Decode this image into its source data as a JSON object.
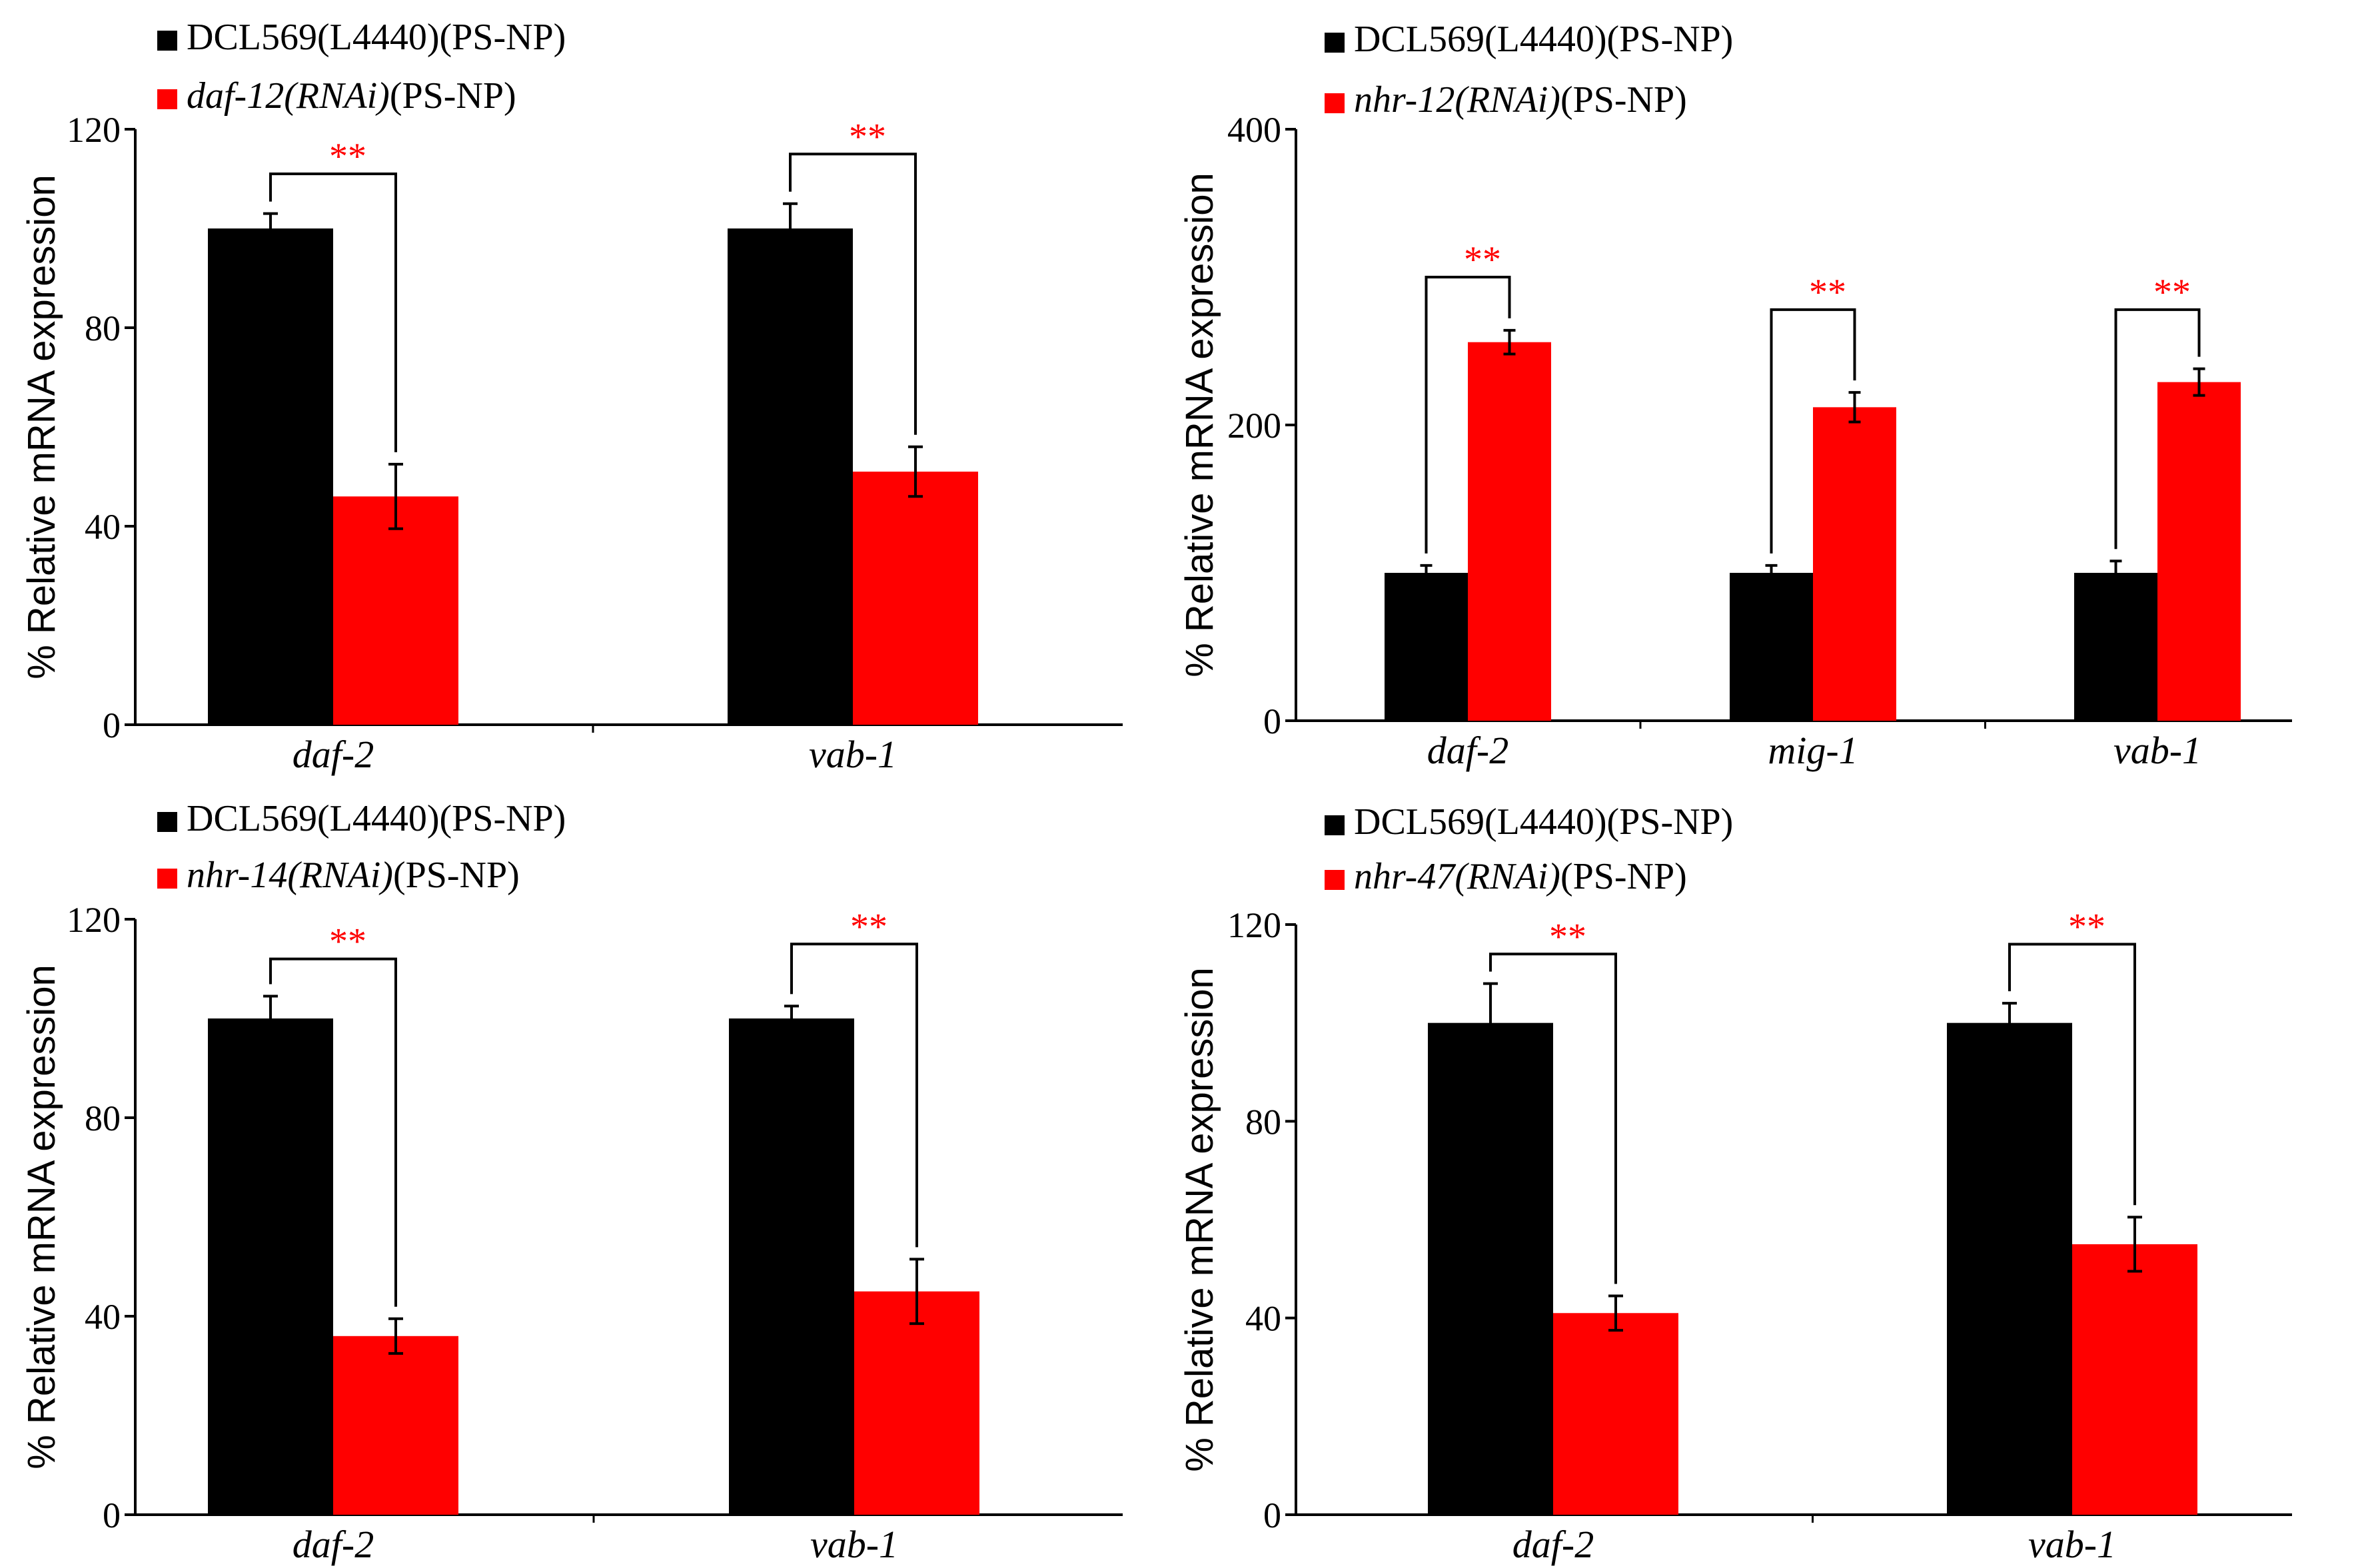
{
  "colors": {
    "control": "#000000",
    "rnai": "#ff0000",
    "significance": "#ff0000",
    "axis": "#000000"
  },
  "chart_data": [
    {
      "type": "bar",
      "panel": "top-left",
      "ylabel": "% Relative mRNA expression",
      "ylim": [
        0,
        120
      ],
      "yticks": [
        0,
        40,
        80,
        120
      ],
      "categories": [
        "daf-2",
        "vab-1"
      ],
      "legend": {
        "placement": "top-left",
        "control_label": "DCL569(L4440)(PS-NP)",
        "rnai_gene": "daf-12",
        "rnai_suffix": "(RNAi)",
        "rnai_tail": "(PS-NP)"
      },
      "series": [
        {
          "name": "DCL569(L4440)(PS-NP)",
          "role": "control",
          "values": [
            100,
            100
          ],
          "errors": [
            3,
            5
          ]
        },
        {
          "name": "daf-12(RNAi)(PS-NP)",
          "role": "rnai",
          "values": [
            46,
            51
          ],
          "errors": [
            6.5,
            5
          ]
        }
      ],
      "significance": [
        {
          "category": "daf-2",
          "label": "**",
          "bracket_level": 111
        },
        {
          "category": "vab-1",
          "label": "**",
          "bracket_level": 115
        }
      ]
    },
    {
      "type": "bar",
      "panel": "top-right",
      "ylabel": "% Relative mRNA expression",
      "ylim": [
        0,
        400
      ],
      "yticks": [
        0,
        200,
        400
      ],
      "categories": [
        "daf-2",
        "mig-1",
        "vab-1"
      ],
      "legend": {
        "placement": "top-left",
        "control_label": "DCL569(L4440)(PS-NP)",
        "rnai_gene": "nhr-12",
        "rnai_suffix": "(RNAi)",
        "rnai_tail": "(PS-NP)"
      },
      "series": [
        {
          "name": "DCL569(L4440)(PS-NP)",
          "role": "control",
          "values": [
            100,
            100,
            100
          ],
          "errors": [
            5,
            5,
            8
          ]
        },
        {
          "name": "nhr-12(RNAi)(PS-NP)",
          "role": "rnai",
          "values": [
            256,
            212,
            229
          ],
          "errors": [
            8,
            10,
            9
          ]
        }
      ],
      "significance": [
        {
          "category": "daf-2",
          "label": "**",
          "bracket_level": 300
        },
        {
          "category": "mig-1",
          "label": "**",
          "bracket_level": 278
        },
        {
          "category": "vab-1",
          "label": "**",
          "bracket_level": 278
        }
      ]
    },
    {
      "type": "bar",
      "panel": "bottom-left",
      "ylabel": "% Relative mRNA expression",
      "ylim": [
        0,
        120
      ],
      "yticks": [
        0,
        40,
        80,
        120
      ],
      "categories": [
        "daf-2",
        "vab-1"
      ],
      "legend": {
        "placement": "top-left",
        "control_label": "DCL569(L4440)(PS-NP)",
        "rnai_gene": "nhr-14",
        "rnai_suffix": "(RNAi)",
        "rnai_tail": "(PS-NP)"
      },
      "series": [
        {
          "name": "DCL569(L4440)(PS-NP)",
          "role": "control",
          "values": [
            100,
            100
          ],
          "errors": [
            4.5,
            2.5
          ]
        },
        {
          "name": "nhr-14(RNAi)(PS-NP)",
          "role": "rnai",
          "values": [
            36,
            45
          ],
          "errors": [
            3.5,
            6.5
          ]
        }
      ],
      "significance": [
        {
          "category": "daf-2",
          "label": "**",
          "bracket_level": 112
        },
        {
          "category": "vab-1",
          "label": "**",
          "bracket_level": 115
        }
      ]
    },
    {
      "type": "bar",
      "panel": "bottom-right",
      "ylabel": "% Relative mRNA expression",
      "ylim": [
        0,
        120
      ],
      "yticks": [
        0,
        40,
        80,
        120
      ],
      "categories": [
        "daf-2",
        "vab-1"
      ],
      "legend": {
        "placement": "top-left",
        "control_label": "DCL569(L4440)(PS-NP)",
        "rnai_gene": "nhr-47",
        "rnai_suffix": "(RNAi)",
        "rnai_tail": "(PS-NP)"
      },
      "series": [
        {
          "name": "DCL569(L4440)(PS-NP)",
          "role": "control",
          "values": [
            100,
            100
          ],
          "errors": [
            8,
            4
          ]
        },
        {
          "name": "nhr-47(RNAi)(PS-NP)",
          "role": "rnai",
          "values": [
            41,
            55
          ],
          "errors": [
            3.5,
            5.5
          ]
        }
      ],
      "significance": [
        {
          "category": "daf-2",
          "label": "**",
          "bracket_level": 114
        },
        {
          "category": "vab-1",
          "label": "**",
          "bracket_level": 116
        }
      ]
    }
  ]
}
